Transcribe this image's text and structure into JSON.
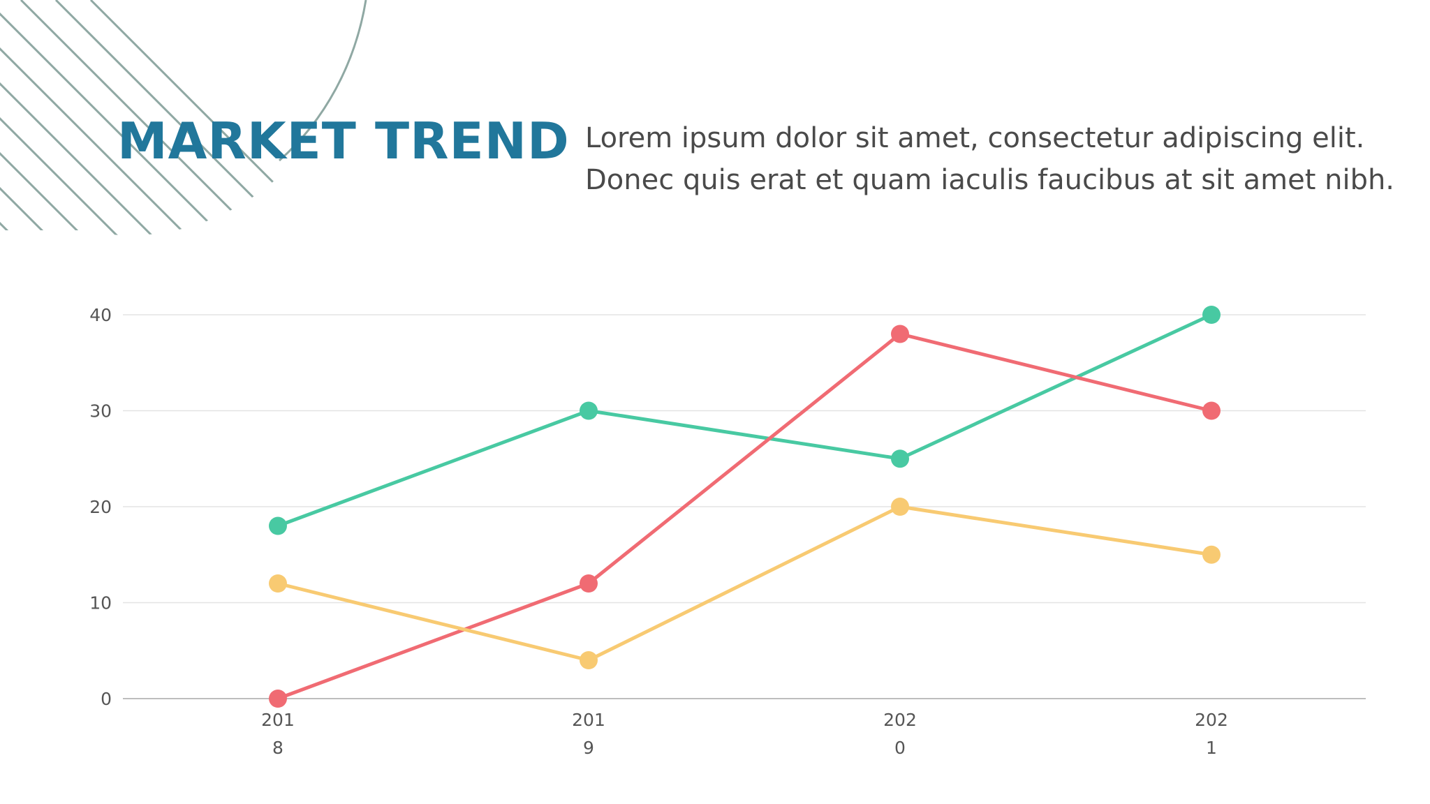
{
  "slide": {
    "title": "MARKET TREND",
    "description": "Lorem ipsum dolor sit amet, consectetur adipiscing elit. Donec quis erat et quam iaculis faucibus at sit amet nibh."
  },
  "colors": {
    "title": "#21779b",
    "text": "#4a4a4a",
    "decor": "#8fa8a3",
    "grid": "#e3e3e3",
    "axis": "#bdbdbd"
  },
  "chart_data": {
    "type": "line",
    "categories": [
      "2018",
      "2019",
      "2020",
      "2021"
    ],
    "category_label_lines": [
      [
        "201",
        "8"
      ],
      [
        "201",
        "9"
      ],
      [
        "202",
        "0"
      ],
      [
        "202",
        "1"
      ]
    ],
    "ylim": [
      0,
      40
    ],
    "yticks": [
      "0",
      "10",
      "20",
      "30",
      "40"
    ],
    "grid": true,
    "legend": "none",
    "series": [
      {
        "color": "#48c9a2",
        "values": [
          18,
          30,
          25,
          40
        ]
      },
      {
        "color": "#f06b73",
        "values": [
          0,
          12,
          38,
          30
        ]
      },
      {
        "color": "#f8ca72",
        "values": [
          12,
          4,
          20,
          15
        ]
      }
    ]
  }
}
